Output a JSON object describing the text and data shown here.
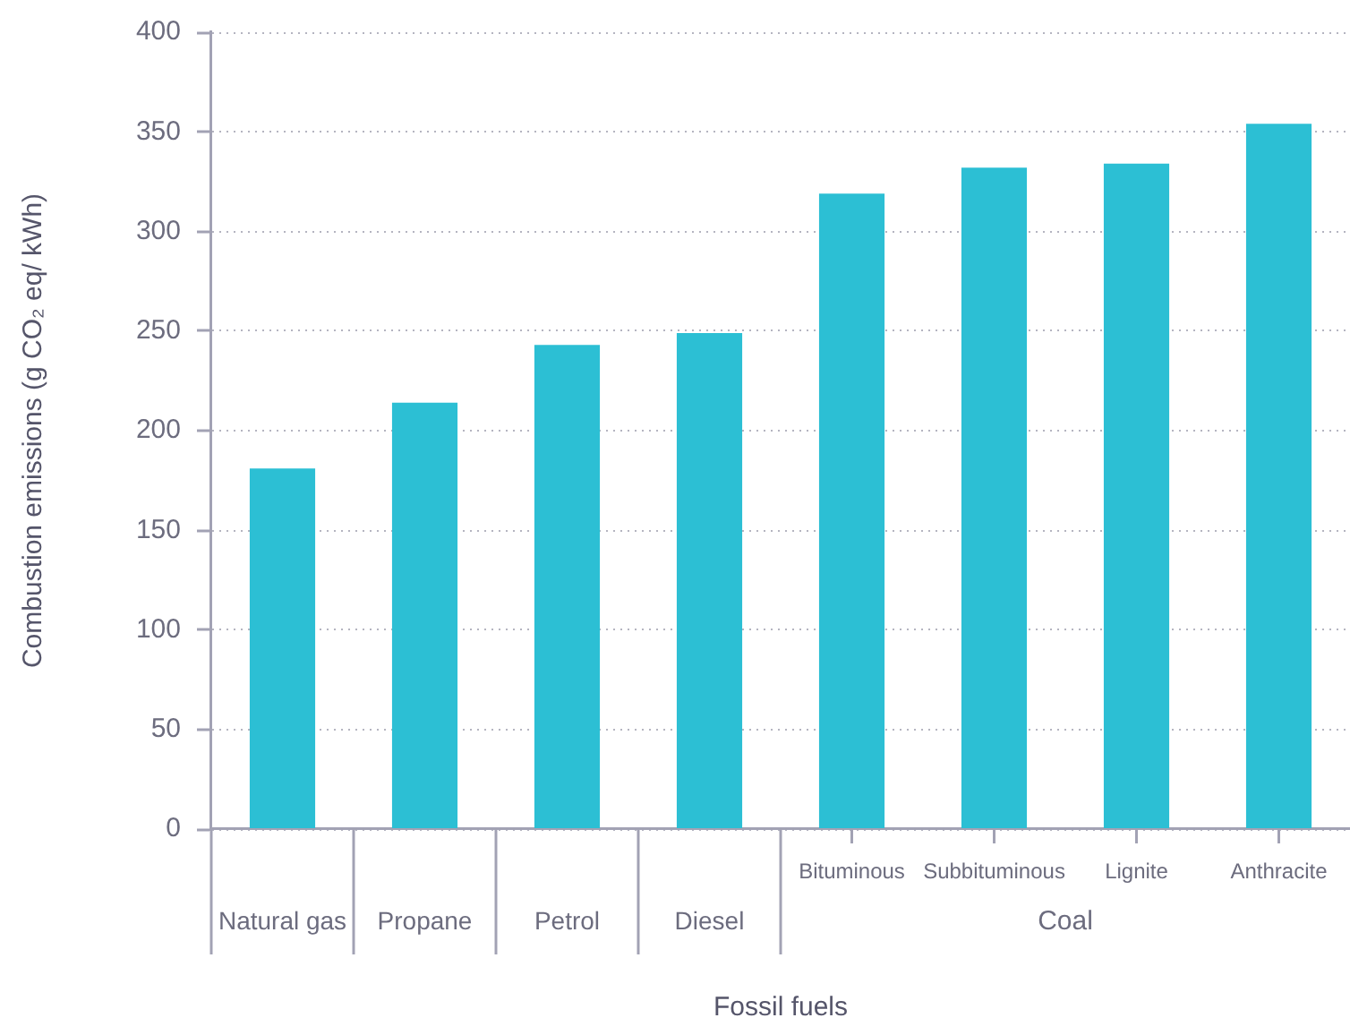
{
  "chart_data": {
    "type": "bar",
    "xlabel": "Fossil fuels",
    "ylabel": "Combustion emissions (g CO₂ eq/ kWh)",
    "categories": [
      "Natural gas",
      "Propane",
      "Petrol",
      "Diesel",
      "Bituminous",
      "Subbituminous",
      "Lignite",
      "Anthracite"
    ],
    "values": [
      181,
      214,
      243,
      249,
      319,
      332,
      334,
      354
    ],
    "color": "#2cbfd4",
    "ylim": [
      0,
      400
    ],
    "yticks": [
      0,
      50,
      100,
      150,
      200,
      250,
      300,
      350,
      400
    ],
    "grid": "y",
    "annotations": [
      "Coal"
    ]
  }
}
